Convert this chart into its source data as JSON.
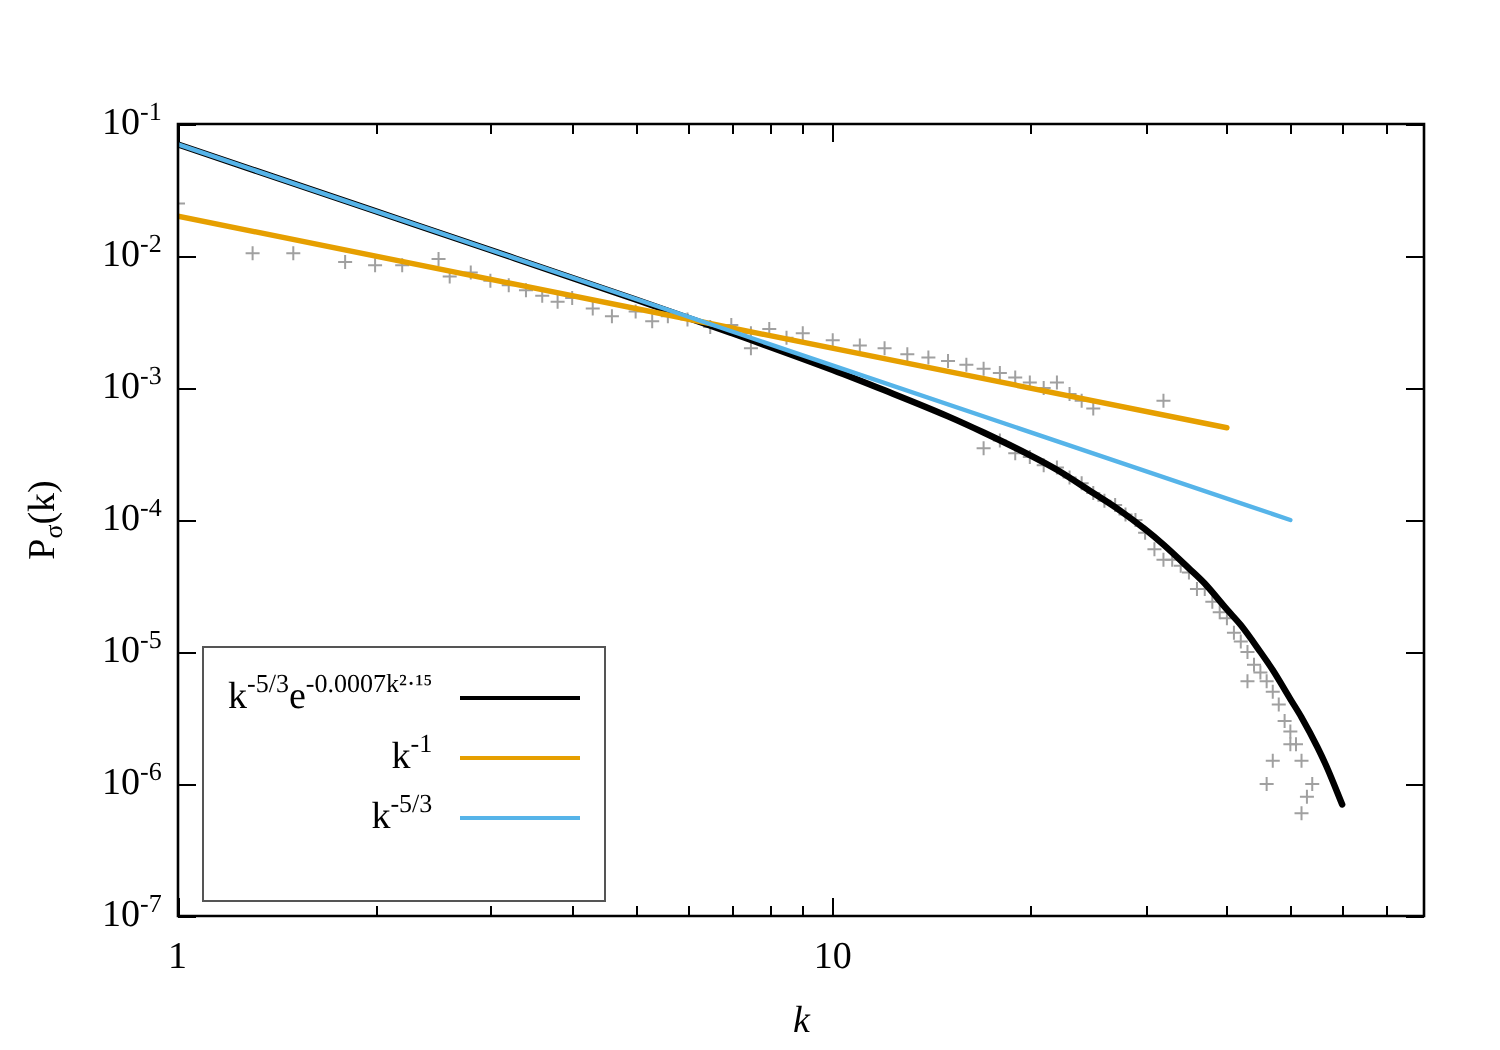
{
  "chart_data": {
    "type": "scatter",
    "xlabel": "k",
    "ylabel": "P$_{σ}$(k)",
    "log": "xy",
    "xlim": [
      1,
      80
    ],
    "ylim": [
      1e-07,
      0.1
    ],
    "xticks": [
      1,
      {
        "value": 2,
        "label": null
      },
      {
        "value": 3,
        "label": null
      },
      {
        "value": 4,
        "label": null
      },
      {
        "value": 5,
        "label": null
      },
      {
        "value": 6,
        "label": null
      },
      {
        "value": 7,
        "label": null
      },
      {
        "value": 8,
        "label": null
      },
      {
        "value": 9,
        "label": null
      },
      10,
      {
        "value": 20,
        "label": null
      },
      {
        "value": 30,
        "label": null
      },
      {
        "value": 40,
        "label": null
      },
      {
        "value": 50,
        "label": null
      },
      {
        "value": 60,
        "label": null
      },
      {
        "value": 70,
        "label": null
      }
    ],
    "yticks": [
      {
        "value": 1e-07,
        "label": "10$^{-7}$"
      },
      {
        "value": 1e-06,
        "label": "10$^{-6}$"
      },
      {
        "value": 1e-05,
        "label": "10$^{-5}$"
      },
      {
        "value": 0.0001,
        "label": "10$^{-4}$"
      },
      {
        "value": 0.001,
        "label": "10$^{-3}$"
      },
      {
        "value": 0.01,
        "label": "10$^{-2}$"
      },
      {
        "value": 0.1,
        "label": "10$^{-1}$"
      }
    ],
    "grid": false,
    "legend": "bottom left",
    "series": [
      {
        "marker": "cross",
        "color": "#a0a0a0",
        "x": [
          1,
          1.3,
          1.5,
          1.8,
          2,
          2.2,
          2.5,
          2.6,
          2.8,
          3,
          3.2,
          3.4,
          3.6,
          3.8,
          4,
          4.3,
          4.6,
          5,
          5.3,
          5.6,
          6,
          6.5,
          7,
          7.5,
          7.5,
          8,
          8.5,
          9,
          10,
          11,
          12,
          13,
          14,
          15,
          16,
          17,
          18,
          19,
          20,
          21,
          22,
          23,
          24,
          25,
          32,
          17,
          18,
          19,
          20,
          21,
          22,
          23,
          24,
          25,
          26,
          27,
          28,
          29,
          30,
          31,
          32,
          33,
          34,
          35,
          36,
          37,
          38,
          39,
          40,
          41,
          42,
          43,
          43,
          44,
          45,
          46,
          46,
          47,
          47,
          48,
          49,
          50,
          50,
          51,
          52,
          52,
          53,
          54
        ],
        "values": [
          0.025,
          0.0105,
          0.0105,
          0.009,
          0.0085,
          0.0085,
          0.0095,
          0.007,
          0.0075,
          0.0065,
          0.006,
          0.0055,
          0.005,
          0.0045,
          0.0048,
          0.004,
          0.0035,
          0.0038,
          0.0032,
          0.0035,
          0.0033,
          0.0029,
          0.003,
          0.0026,
          0.002,
          0.0028,
          0.0024,
          0.0026,
          0.0023,
          0.0021,
          0.002,
          0.0018,
          0.0017,
          0.0016,
          0.0015,
          0.0014,
          0.0013,
          0.0012,
          0.0011,
          0.001,
          0.0011,
          0.0009,
          0.0008,
          0.0007,
          0.0008,
          0.00035,
          0.0004,
          0.00032,
          0.0003,
          0.00026,
          0.00025,
          0.00021,
          0.00019,
          0.00016,
          0.00014,
          0.00013,
          0.00011,
          0.0001,
          8e-05,
          6e-05,
          5e-05,
          5e-05,
          4.5e-05,
          4e-05,
          3e-05,
          3e-05,
          2.4e-05,
          2e-05,
          1.8e-05,
          1.4e-05,
          1.2e-05,
          1e-05,
          6e-06,
          8e-06,
          7e-06,
          6e-06,
          1e-06,
          5e-06,
          1.5e-06,
          4e-06,
          3e-06,
          2.5e-06,
          2e-06,
          2e-06,
          1.5e-06,
          6e-07,
          8e-07,
          1e-06
        ]
      },
      {
        "type": "line",
        "marker": "none",
        "name": "k$^{-5/3}$e$^{-0.0007k²·¹⁵}$",
        "color": "#000000",
        "x": [
          1,
          2,
          3,
          5,
          7,
          10,
          12,
          15,
          17,
          20,
          22,
          25,
          27,
          30,
          32,
          35,
          37,
          40,
          42,
          45,
          47,
          50,
          52,
          55,
          57,
          60
        ],
        "values": [
          0.07,
          0.0219,
          0.0111,
          0.00468,
          0.00261,
          0.00137,
          0.00096,
          0.00061,
          0.00046,
          0.00031,
          0.00024,
          0.00016,
          0.000125,
          8.5e-05,
          6.5e-05,
          4.3e-05,
          3.3e-05,
          2.1e-05,
          1.6e-05,
          1e-05,
          7.3e-06,
          4.4e-06,
          3.2e-06,
          1.9e-06,
          1.3e-06,
          7e-07
        ]
      },
      {
        "type": "line",
        "marker": "none",
        "name": "k$^{-1}$",
        "color": "#e69f00",
        "x": [
          1,
          40
        ],
        "values": [
          0.02,
          0.0005
        ]
      },
      {
        "type": "line",
        "marker": "none",
        "name": "k$^{-5/3}$",
        "color": "#56b4e9",
        "x": [
          1,
          50
        ],
        "values": [
          0.07,
          0.0001
        ]
      }
    ]
  }
}
